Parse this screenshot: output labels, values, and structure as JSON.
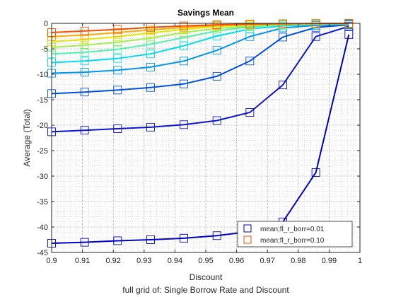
{
  "chart_data": {
    "type": "line",
    "title": "Savings Mean",
    "xlabel": "Discount",
    "ylabel": "Average (Total)",
    "subtitle": "full grid of: Single Borrow Rate and Discount",
    "xlim": [
      0.9,
      1.0
    ],
    "ylim": [
      -45,
      0
    ],
    "xticks": [
      "0.9",
      "0.91",
      "0.92",
      "0.93",
      "0.94",
      "0.95",
      "0.96",
      "0.97",
      "0.98",
      "0.99",
      "1"
    ],
    "yticks": [
      "0",
      "-5",
      "-10",
      "-15",
      "-20",
      "-25",
      "-30",
      "-35",
      "-40",
      "-45"
    ],
    "grid": true,
    "minor_grid": true,
    "legend_position": "bottom-right",
    "x": [
      0.9,
      0.9107,
      0.9214,
      0.9321,
      0.9429,
      0.9536,
      0.9643,
      0.975,
      0.9857,
      0.9964
    ],
    "series": [
      {
        "name": "mean;fl_r_borr=0.01",
        "color": "#0000c8",
        "values": [
          -43.2,
          -43.0,
          -42.7,
          -42.5,
          -42.2,
          -41.7,
          -40.9,
          -39.0,
          -29.3,
          -2.2
        ]
      },
      {
        "name": "",
        "color": "#0a14d2",
        "values": [
          -21.3,
          -21.0,
          -20.7,
          -20.4,
          -19.9,
          -19.1,
          -17.5,
          -12.1,
          -2.6,
          -0.6
        ]
      },
      {
        "name": "",
        "color": "#0050e6",
        "values": [
          -13.8,
          -13.5,
          -13.1,
          -12.6,
          -11.9,
          -10.4,
          -7.4,
          -2.7,
          -0.8,
          -0.3
        ]
      },
      {
        "name": "",
        "color": "#0096f0",
        "values": [
          -9.8,
          -9.6,
          -9.2,
          -8.6,
          -7.4,
          -5.3,
          -2.6,
          -0.9,
          -0.4,
          -0.2
        ]
      },
      {
        "name": "",
        "color": "#00dcf0",
        "values": [
          -7.7,
          -7.4,
          -6.9,
          -6.0,
          -4.4,
          -2.5,
          -1.1,
          -0.5,
          -0.2,
          -0.1
        ]
      },
      {
        "name": "",
        "color": "#50f0aa",
        "values": [
          -6.0,
          -5.7,
          -5.1,
          -4.1,
          -2.8,
          -1.5,
          -0.7,
          -0.3,
          -0.1,
          -0.05
        ]
      },
      {
        "name": "",
        "color": "#a0f050",
        "values": [
          -4.7,
          -4.3,
          -3.7,
          -2.9,
          -1.8,
          -1.0,
          -0.5,
          -0.2,
          -0.1,
          -0.05
        ]
      },
      {
        "name": "",
        "color": "#e6e600",
        "values": [
          -3.6,
          -3.2,
          -2.6,
          -1.9,
          -1.2,
          -0.6,
          -0.3,
          -0.15,
          -0.1,
          -0.05
        ]
      },
      {
        "name": "",
        "color": "#ffaa00",
        "values": [
          -2.6,
          -2.3,
          -1.8,
          -1.3,
          -0.8,
          -0.4,
          -0.2,
          -0.1,
          -0.05,
          -0.02
        ]
      },
      {
        "name": "mean;fl_r_borr=0.10",
        "color": "#f05000",
        "values": [
          -1.8,
          -1.5,
          -1.2,
          -0.8,
          -0.5,
          -0.3,
          -0.15,
          -0.08,
          -0.04,
          -0.02
        ]
      }
    ],
    "line_color": "#0000c8"
  }
}
